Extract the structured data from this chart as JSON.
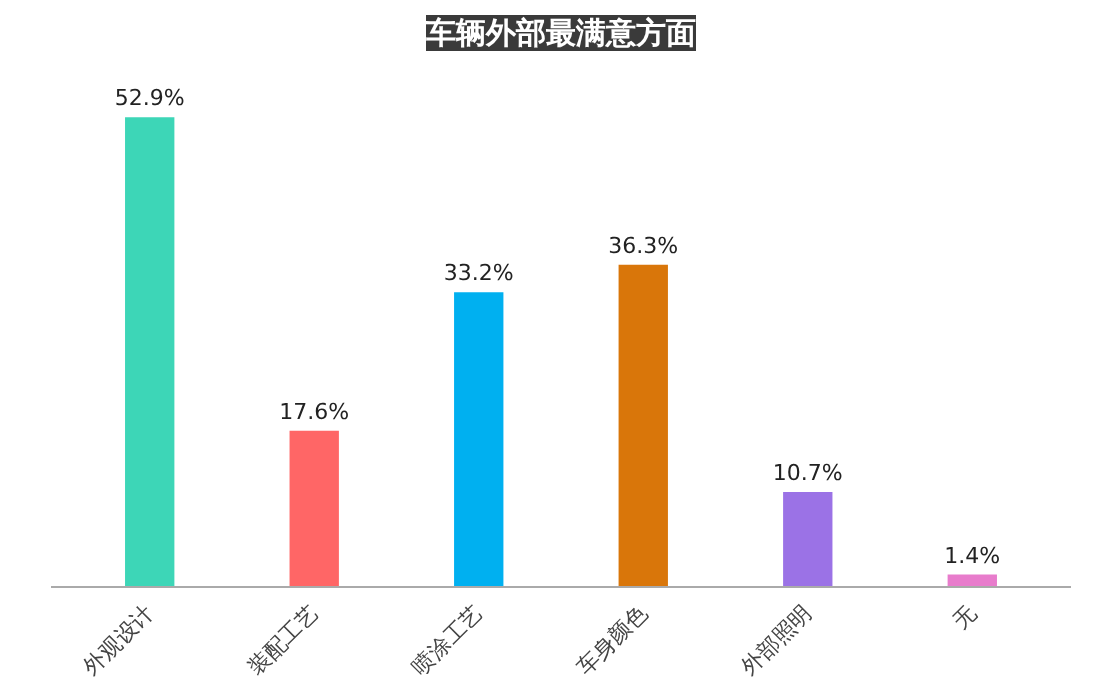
{
  "chart_data": {
    "type": "bar",
    "title": "车辆外部最满意方面",
    "categories": [
      "外观设计",
      "装配工艺",
      "喷涂工艺",
      "车身颜色",
      "外部照明",
      "无"
    ],
    "values": [
      52.9,
      17.6,
      33.2,
      36.3,
      10.7,
      1.4
    ],
    "value_labels": [
      "52.9%",
      "17.6%",
      "33.2%",
      "36.3%",
      "10.7%",
      "1.4%"
    ],
    "colors": [
      "#3dd6b7",
      "#ff6666",
      "#00b0f0",
      "#d9760a",
      "#9b72e6",
      "#e87ccc"
    ],
    "grid": false
  }
}
